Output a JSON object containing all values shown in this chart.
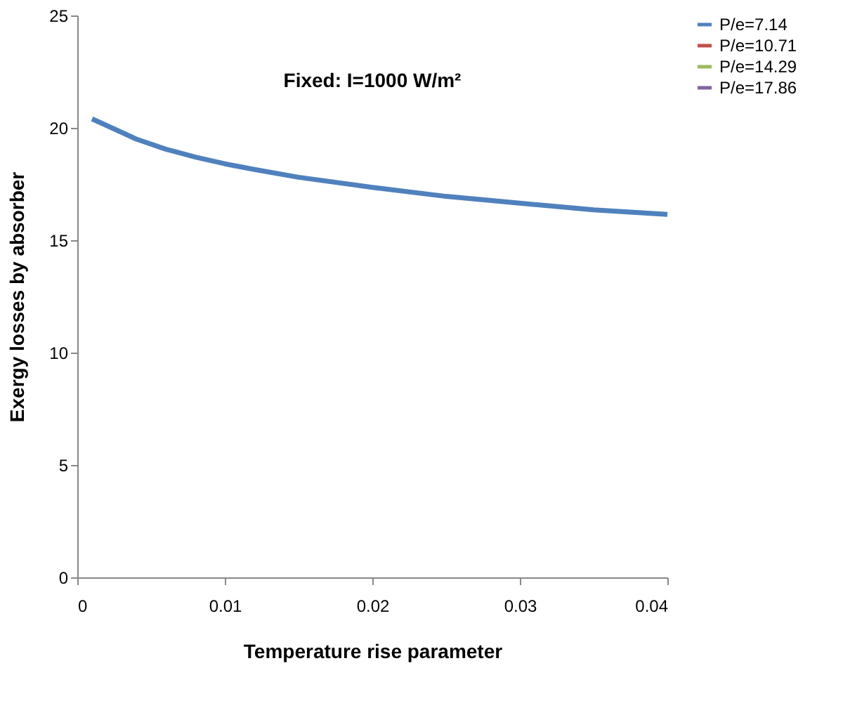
{
  "chart_data": {
    "type": "line",
    "title": "Fixed: I=1000 W/m²",
    "xlabel": "Temperature rise parameter",
    "ylabel": "Exergy losses by absorber",
    "x": [
      0.001,
      0.002,
      0.004,
      0.006,
      0.008,
      0.01,
      0.012,
      0.015,
      0.02,
      0.025,
      0.03,
      0.035,
      0.04
    ],
    "series": [
      {
        "name": "P/e=7.14",
        "color": "#4f81bd",
        "values": [
          20.4,
          20.1,
          19.5,
          19.05,
          18.7,
          18.4,
          18.15,
          17.8,
          17.35,
          16.95,
          16.65,
          16.35,
          16.15
        ]
      },
      {
        "name": "P/e=10.71",
        "color": "#c0504d",
        "values": [
          null,
          null,
          null,
          null,
          null,
          null,
          null,
          null,
          null,
          null,
          null,
          null,
          null
        ]
      },
      {
        "name": "P/e=14.29",
        "color": "#9bbb59",
        "values": [
          null,
          null,
          null,
          null,
          null,
          null,
          null,
          null,
          null,
          null,
          null,
          null,
          null
        ]
      },
      {
        "name": "P/e=17.86",
        "color": "#8064a2",
        "values": [
          null,
          null,
          null,
          null,
          null,
          null,
          null,
          null,
          null,
          null,
          null,
          null,
          null
        ]
      }
    ],
    "xlim": [
      0,
      0.04
    ],
    "xticks": [
      0,
      0.01,
      0.02,
      0.03,
      0.04
    ],
    "ylim": [
      0,
      25
    ],
    "yticks": [
      0,
      5,
      10,
      15,
      20,
      25
    ],
    "grid": false,
    "legend": "right",
    "marker": "none",
    "line_style": "solid"
  }
}
